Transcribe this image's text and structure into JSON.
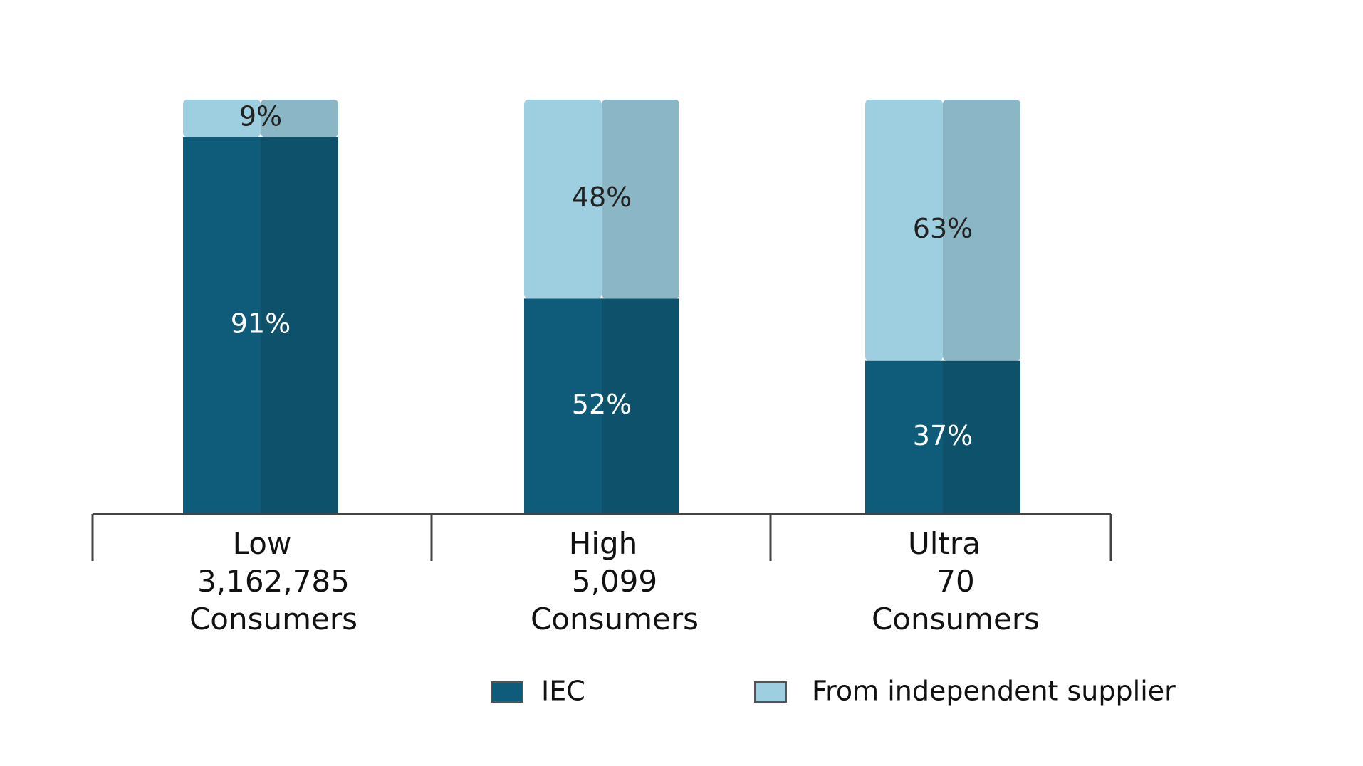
{
  "chart_data": {
    "type": "bar",
    "stacked": true,
    "percent": true,
    "categories": [
      {
        "name": "Low",
        "count": "3,162,785",
        "unit": "Consumers"
      },
      {
        "name": "High",
        "count": "5,099",
        "unit": "Consumers"
      },
      {
        "name": "Ultra",
        "count": "70",
        "unit": "Consumers"
      }
    ],
    "series": [
      {
        "name": "IEC",
        "values": [
          91,
          52,
          37
        ],
        "labels": [
          "91%",
          "52%",
          "37%"
        ],
        "color": "#0f5c7a",
        "label_color": "#ffffff"
      },
      {
        "name": "From independent supplier",
        "values": [
          9,
          48,
          63
        ],
        "labels": [
          "9%",
          "48%",
          "63%"
        ],
        "color": "#9dcfe0",
        "label_color": "#222222"
      }
    ],
    "ylim": [
      0,
      100
    ],
    "grid": false,
    "legend": "bottom-right",
    "title": "",
    "xlabel": "",
    "ylabel": ""
  }
}
